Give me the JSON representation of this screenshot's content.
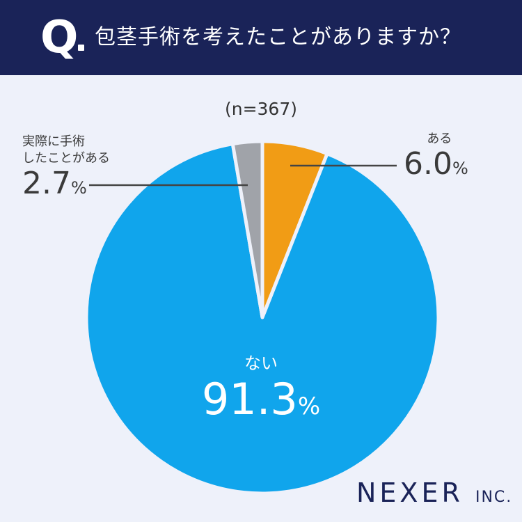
{
  "header": {
    "q_mark": "Q",
    "question": "包茎手術を考えたことがありますか？"
  },
  "sample_size": "(n=367)",
  "chart_data": {
    "type": "pie",
    "title": "包茎手術を考えたことがありますか？",
    "slices": [
      {
        "label": "ある",
        "value": 6.0,
        "pct_text": "6.0",
        "color": "#f19c15"
      },
      {
        "label": "ない",
        "value": 91.3,
        "pct_text": "91.3",
        "color": "#10a5ec"
      },
      {
        "label": "実際に手術したことがある",
        "label_lines": [
          "実際に手術",
          "したことがある"
        ],
        "value": 2.7,
        "pct_text": "2.7",
        "color": "#a0a3a9"
      }
    ],
    "unit": "%",
    "start": "12 o'clock",
    "direction": "clockwise"
  },
  "logo": {
    "main": "NEXER",
    "suffix": "INC."
  }
}
